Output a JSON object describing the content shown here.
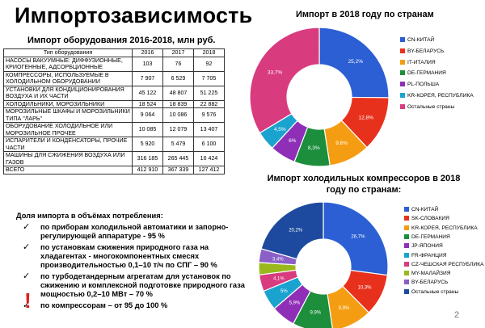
{
  "title": "Импортозависимость",
  "table": {
    "title": "Импорт оборудования 2016-2018, млн руб.",
    "headers": [
      "Тип оборудования",
      "2016",
      "2017",
      "2018"
    ],
    "rows": [
      {
        "name": "насосы вакуумные: диффузионные, криогенные, адсорбционные",
        "v2016": "103",
        "v2017": "76",
        "v2018": "92"
      },
      {
        "name": "компрессоры, используемые в холодильном оборудовании",
        "v2016": "7 907",
        "v2017": "6 529",
        "v2018": "7 705"
      },
      {
        "name": "установки для кондиционирования воздуха и их части",
        "v2016": "45 122",
        "v2017": "48 807",
        "v2018": "51 225"
      },
      {
        "name": "холодильники, морозильники",
        "v2016": "18 524",
        "v2017": "18 839",
        "v2018": "22 882"
      },
      {
        "name": "морозильные шкафы и морозильники типа \"ларь\"",
        "v2016": "9 064",
        "v2017": "10 086",
        "v2018": "9 576"
      },
      {
        "name": "оборудование холодильное или морозильное прочее",
        "v2016": "10 085",
        "v2017": "12 079",
        "v2018": "13 407"
      },
      {
        "name": "испарители и конденсаторы, прочие части",
        "v2016": "5 920",
        "v2017": "5 479",
        "v2018": "6 100"
      },
      {
        "name": "машины для сжижения воздуха или газов",
        "v2016": "316 185",
        "v2017": "265 445",
        "v2018": "16 424"
      },
      {
        "name": "всего",
        "v2016": "412 910",
        "v2017": "367 339",
        "v2018": "127 412"
      }
    ]
  },
  "notes": {
    "heading": "Доля импорта в объёмах потребления:",
    "items": [
      "по приборам холодильной автоматики и запорно-регулирующей аппаратуре - 95 %",
      "по установкам сжижения природного газа на хладагентах - многокомпонентных смесях производительностью 0,1–10 т/ч по СПГ – 90 %",
      "по турбодетандерным агрегатам для установок по сжижению и комплексной подготовке природного газа мощностью 0,2–10 МВт – 70 %",
      "по компрессорам – от 95 до 100 %"
    ],
    "check_mark": "✓",
    "exclamation": "!"
  },
  "chart_data": [
    {
      "type": "pie",
      "title": "Импорт в 2018 году по странам",
      "categories": [
        "CN-КИТАЙ",
        "BY-БЕЛАРУСЬ",
        "IT-ИТАЛИЯ",
        "DE-ГЕРМАНИЯ",
        "PL-ПОЛЬША",
        "KR-КОРЕЯ, РЕСПУБЛИКА",
        "Остальные страны"
      ],
      "values": [
        25.2,
        12.8,
        9.6,
        8.3,
        6.0,
        4.5,
        33.7
      ],
      "labels": [
        "25,2%",
        "12,8%",
        "9,6%",
        "8,3%",
        "6%",
        "4,5%",
        "33,7%"
      ],
      "colors": [
        "#2c5fd3",
        "#e8311d",
        "#f59d12",
        "#1c8e3c",
        "#8f2fb8",
        "#1ba3cf",
        "#d93b7f"
      ]
    },
    {
      "type": "pie",
      "title": "Импорт холодильных компрессоров в 2018 году по странам:",
      "categories": [
        "CN-КИТАЙ",
        "SK-СЛОВАКИЯ",
        "KR-КОРЕЯ, РЕСПУБЛИКА",
        "DE-ГЕРМАНИЯ",
        "JP-ЯПОНИЯ",
        "FR-ФРАНЦИЯ",
        "CZ-ЧЕШСКАЯ РЕСПУБЛИКА",
        "MY-МАЛАЙЗИЯ",
        "BY-БЕЛАРУСЬ",
        "Остальные страны"
      ],
      "values": [
        26.7,
        10.3,
        9.9,
        9.9,
        5.9,
        5.0,
        4.1,
        3.0,
        3.4,
        20.2
      ],
      "labels": [
        "26,7%",
        "10,3%",
        "9,9%",
        "9,9%",
        "5,9%",
        "5%",
        "4,1%",
        "",
        "3,4%",
        "20,2%"
      ],
      "colors": [
        "#2c5fd3",
        "#e8311d",
        "#f59d12",
        "#1c8e3c",
        "#8f2fb8",
        "#1ba3cf",
        "#d93b7f",
        "#9ab81c",
        "#8a5fc8",
        "#1d4a9e"
      ]
    }
  ],
  "page_number": "2"
}
